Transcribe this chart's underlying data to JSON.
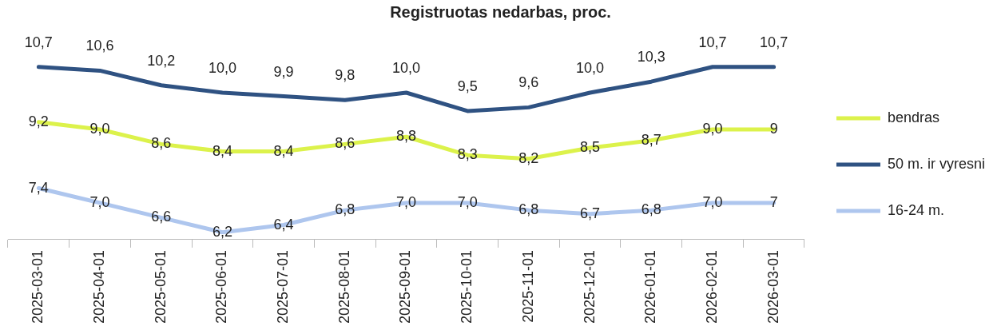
{
  "chart_data": {
    "type": "line",
    "title": "Registruotas nedarbas, proc.",
    "categories": [
      "2025-03-01",
      "2025-04-01",
      "2025-05-01",
      "2025-06-01",
      "2025-07-01",
      "2025-08-01",
      "2025-09-01",
      "2025-10-01",
      "2025-11-01",
      "2025-12-01",
      "2026-01-01",
      "2026-02-01",
      "2026-03-01"
    ],
    "series": [
      {
        "name": "bendras",
        "color": "#dcf24b",
        "values": [
          9.2,
          9.0,
          8.6,
          8.4,
          8.4,
          8.6,
          8.8,
          8.3,
          8.2,
          8.5,
          8.7,
          9.0,
          9.0
        ],
        "value_labels": [
          "9,2",
          "9,0",
          "8,6",
          "8,4",
          "8,4",
          "8,6",
          "8,8",
          "8,3",
          "8,2",
          "8,5",
          "8,7",
          "9,0",
          "9"
        ]
      },
      {
        "name": "50 m. ir vyresni",
        "color": "#2f5282",
        "values": [
          10.7,
          10.6,
          10.2,
          10.0,
          9.9,
          9.8,
          10.0,
          9.5,
          9.6,
          10.0,
          10.3,
          10.7,
          10.7
        ],
        "value_labels": [
          "10,7",
          "10,6",
          "10,2",
          "10,0",
          "9,9",
          "9,8",
          "10,0",
          "9,5",
          "9,6",
          "10,0",
          "10,3",
          "10,7",
          "10,7"
        ]
      },
      {
        "name": "16-24 m.",
        "color": "#aec6ee",
        "values": [
          7.4,
          7.0,
          6.6,
          6.2,
          6.4,
          6.8,
          7.0,
          7.0,
          6.8,
          6.7,
          6.8,
          7.0,
          7.0
        ],
        "value_labels": [
          "7,4",
          "7,0",
          "6,6",
          "6,2",
          "6,4",
          "6,8",
          "7,0",
          "7,0",
          "6,8",
          "6,7",
          "6,8",
          "7,0",
          "7"
        ]
      }
    ],
    "legend": "right",
    "marker": "none",
    "line_style": "solid",
    "grid": false
  }
}
